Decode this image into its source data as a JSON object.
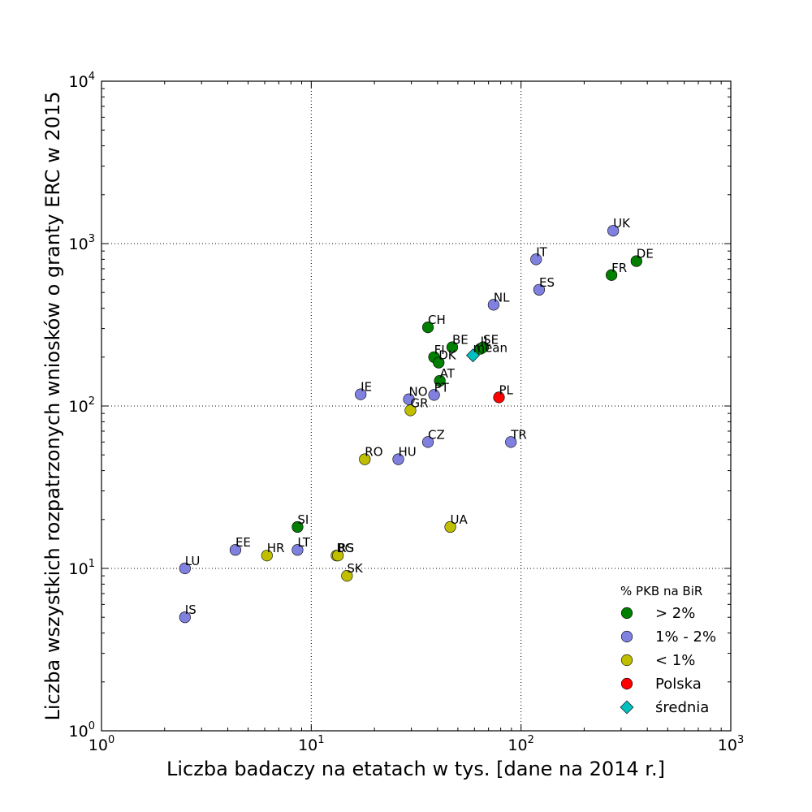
{
  "chart_data": {
    "type": "scatter",
    "xlabel": "Liczba badaczy na etatach w tys. [dane na 2014 r.]",
    "ylabel": "Liczba wszystkich rozpatrzonych wniosków o granty ERC w 2015",
    "xscale": "log",
    "yscale": "log",
    "xlim": [
      1,
      1000
    ],
    "ylim": [
      1,
      10000
    ],
    "x_ticks": [
      {
        "value": 1,
        "base": "10",
        "exp": "0"
      },
      {
        "value": 10,
        "base": "10",
        "exp": "1"
      },
      {
        "value": 100,
        "base": "10",
        "exp": "2"
      },
      {
        "value": 1000,
        "base": "10",
        "exp": "3"
      }
    ],
    "y_ticks": [
      {
        "value": 1,
        "base": "10",
        "exp": "0"
      },
      {
        "value": 10,
        "base": "10",
        "exp": "1"
      },
      {
        "value": 100,
        "base": "10",
        "exp": "2"
      },
      {
        "value": 1000,
        "base": "10",
        "exp": "3"
      },
      {
        "value": 10000,
        "base": "10",
        "exp": "4"
      }
    ],
    "grid": true,
    "legend_position": "bottom-right",
    "legend": {
      "title": "% PKB na BiR",
      "entries": [
        {
          "label": "> 2%",
          "color": "#007f00",
          "marker": "circle"
        },
        {
          "label": "1% - 2%",
          "color": "#8080e0",
          "marker": "circle"
        },
        {
          "label": "< 1%",
          "color": "#bfbf00",
          "marker": "circle"
        },
        {
          "label": "Polska",
          "color": "#ff0000",
          "marker": "circle"
        },
        {
          "label": "średnia",
          "color": "#00bfbf",
          "marker": "diamond"
        }
      ]
    },
    "points": [
      {
        "label": "UK",
        "x": 275,
        "y": 1200,
        "color": "#8080e0",
        "marker": "circle"
      },
      {
        "label": "DE",
        "x": 355,
        "y": 780,
        "color": "#007f00",
        "marker": "circle"
      },
      {
        "label": "FR",
        "x": 270,
        "y": 640,
        "color": "#007f00",
        "marker": "circle"
      },
      {
        "label": "IT",
        "x": 118,
        "y": 800,
        "color": "#8080e0",
        "marker": "circle"
      },
      {
        "label": "ES",
        "x": 122,
        "y": 520,
        "color": "#8080e0",
        "marker": "circle"
      },
      {
        "label": "NL",
        "x": 74,
        "y": 420,
        "color": "#8080e0",
        "marker": "circle"
      },
      {
        "label": "CH",
        "x": 36,
        "y": 305,
        "color": "#007f00",
        "marker": "circle"
      },
      {
        "label": "BE",
        "x": 47,
        "y": 230,
        "color": "#007f00",
        "marker": "circle"
      },
      {
        "label": "IL",
        "x": 64,
        "y": 225,
        "color": "#007f00",
        "marker": "circle"
      },
      {
        "label": "SE",
        "x": 66,
        "y": 230,
        "color": "#007f00",
        "marker": "circle"
      },
      {
        "label": "mean",
        "x": 59,
        "y": 205,
        "color": "#00bfbf",
        "marker": "diamond"
      },
      {
        "label": "FI",
        "x": 38.5,
        "y": 200,
        "color": "#007f00",
        "marker": "circle"
      },
      {
        "label": "DK",
        "x": 40.5,
        "y": 185,
        "color": "#007f00",
        "marker": "circle"
      },
      {
        "label": "AT",
        "x": 41,
        "y": 143,
        "color": "#007f00",
        "marker": "circle"
      },
      {
        "label": "PT",
        "x": 38.5,
        "y": 117,
        "color": "#8080e0",
        "marker": "circle"
      },
      {
        "label": "PL",
        "x": 78.5,
        "y": 113,
        "color": "#ff0000",
        "marker": "circle"
      },
      {
        "label": "IE",
        "x": 17.2,
        "y": 118,
        "color": "#8080e0",
        "marker": "circle"
      },
      {
        "label": "NO",
        "x": 29.2,
        "y": 110,
        "color": "#8080e0",
        "marker": "circle"
      },
      {
        "label": "GR",
        "x": 29.7,
        "y": 94,
        "color": "#bfbf00",
        "marker": "circle"
      },
      {
        "label": "CZ",
        "x": 36,
        "y": 60,
        "color": "#8080e0",
        "marker": "circle"
      },
      {
        "label": "TR",
        "x": 89.5,
        "y": 60,
        "color": "#8080e0",
        "marker": "circle"
      },
      {
        "label": "RO",
        "x": 18,
        "y": 47,
        "color": "#bfbf00",
        "marker": "circle"
      },
      {
        "label": "HU",
        "x": 26,
        "y": 47,
        "color": "#8080e0",
        "marker": "circle"
      },
      {
        "label": "SI",
        "x": 8.6,
        "y": 18,
        "color": "#007f00",
        "marker": "circle"
      },
      {
        "label": "UA",
        "x": 46,
        "y": 18,
        "color": "#bfbf00",
        "marker": "circle"
      },
      {
        "label": "EE",
        "x": 4.35,
        "y": 13,
        "color": "#8080e0",
        "marker": "circle"
      },
      {
        "label": "LT",
        "x": 8.6,
        "y": 13,
        "color": "#8080e0",
        "marker": "circle"
      },
      {
        "label": "HR",
        "x": 6.15,
        "y": 12,
        "color": "#bfbf00",
        "marker": "circle"
      },
      {
        "label": "BG",
        "x": 13.2,
        "y": 12,
        "color": "#bfbf00",
        "marker": "circle"
      },
      {
        "label": "RS",
        "x": 13.4,
        "y": 12,
        "color": "#bfbf00",
        "marker": "circle"
      },
      {
        "label": "SK",
        "x": 14.8,
        "y": 9,
        "color": "#bfbf00",
        "marker": "circle"
      },
      {
        "label": "LU",
        "x": 2.5,
        "y": 10,
        "color": "#8080e0",
        "marker": "circle"
      },
      {
        "label": "IS",
        "x": 2.5,
        "y": 5,
        "color": "#8080e0",
        "marker": "circle"
      }
    ]
  }
}
